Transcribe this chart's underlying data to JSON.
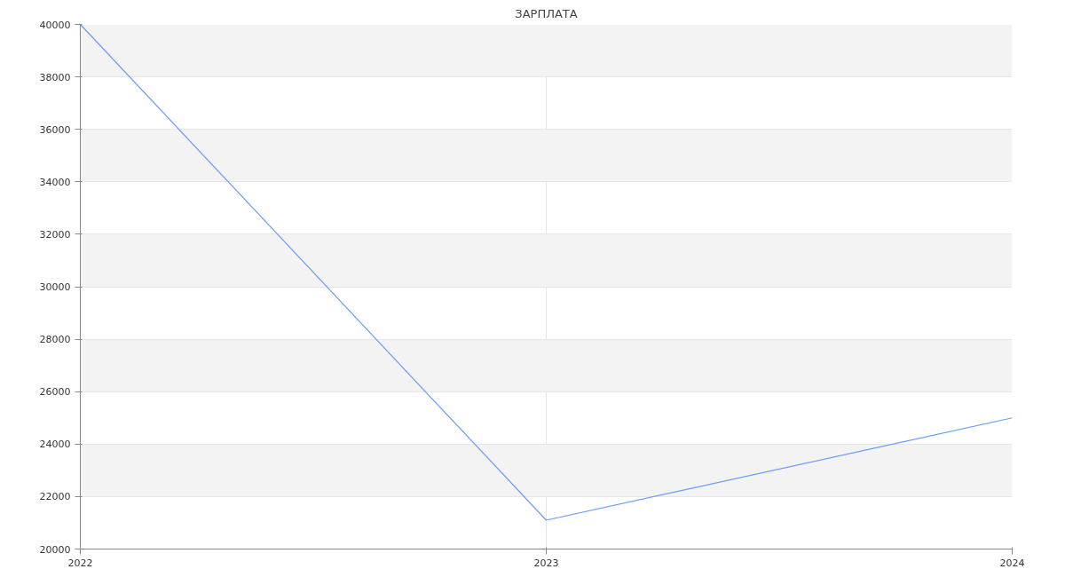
{
  "chart_data": {
    "type": "line",
    "title": "ЗАРПЛАТА",
    "x": [
      2022,
      2023,
      2024
    ],
    "series": [
      {
        "color": "#6b9bf5",
        "values": [
          40000,
          21100,
          25000
        ]
      }
    ],
    "xlim": [
      2022,
      2024
    ],
    "xticks": [
      2022,
      2023,
      2024
    ],
    "ylim": [
      20000,
      40000
    ],
    "yticks": [
      20000,
      22000,
      24000,
      26000,
      28000,
      30000,
      32000,
      34000,
      36000,
      38000,
      40000
    ],
    "grid": true,
    "marker": "none",
    "line_style": "solid"
  }
}
